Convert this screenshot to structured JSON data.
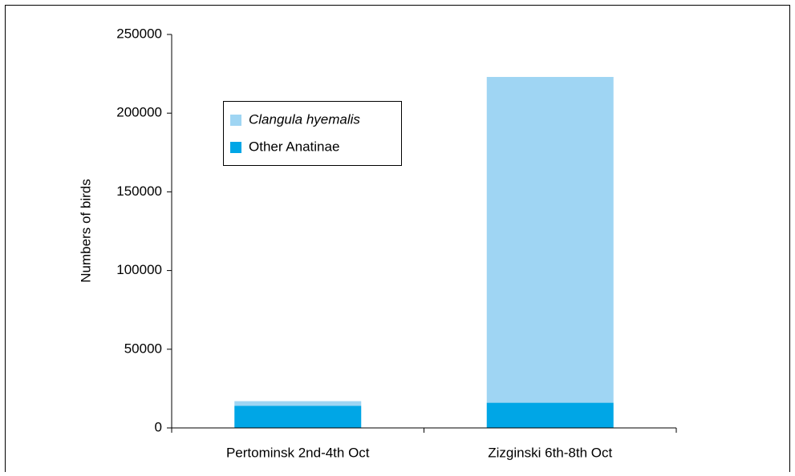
{
  "chart_data": {
    "type": "stacked_bar",
    "ylabel": "Numbers of birds",
    "categories": [
      "Pertominsk 2nd-4th Oct",
      "Zizginski 6th-8th Oct"
    ],
    "series": [
      {
        "name": "Clangula hyemalis",
        "color": "#9fd5f3",
        "values": [
          3000,
          207000
        ]
      },
      {
        "name": "Other Anatinae",
        "color": "#00a6e6",
        "values": [
          14000,
          16000
        ]
      }
    ],
    "ylim": [
      0,
      250000
    ],
    "yticks": [
      0,
      50000,
      100000,
      150000,
      200000,
      250000
    ],
    "grid": false,
    "legend": "upper left"
  }
}
